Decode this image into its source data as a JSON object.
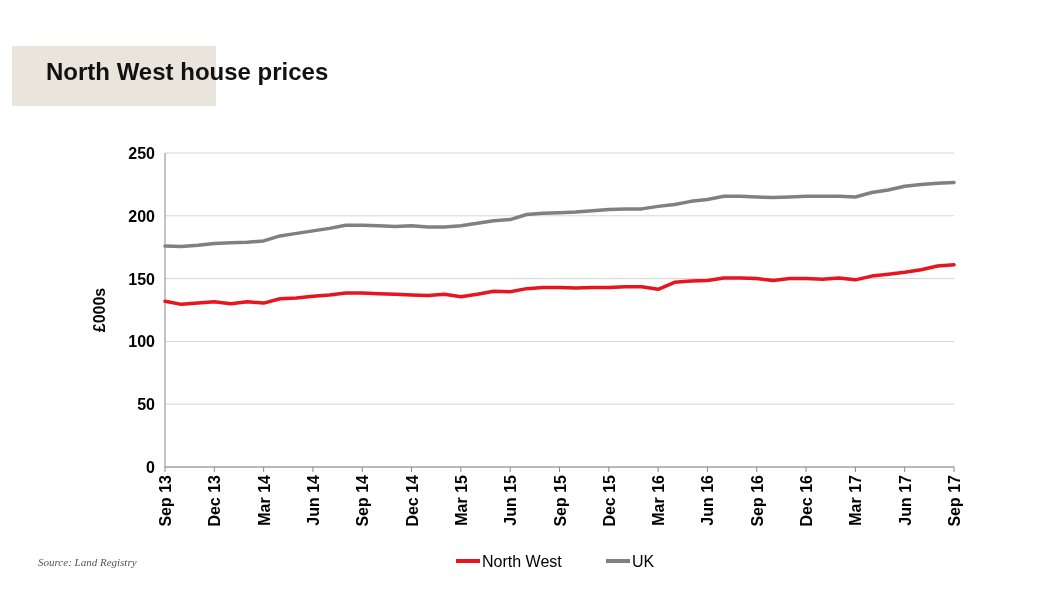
{
  "chart_data": {
    "type": "line",
    "title": "North West house prices",
    "ylabel": "£000s",
    "categories": [
      "Sep 13",
      null,
      null,
      "Dec 13",
      null,
      null,
      "Mar 14",
      null,
      null,
      "Jun 14",
      null,
      null,
      "Sep 14",
      null,
      null,
      "Dec 14",
      null,
      null,
      "Mar 15",
      null,
      null,
      "Jun 15",
      null,
      null,
      "Sep 15",
      null,
      null,
      "Dec 15",
      null,
      null,
      "Mar 16",
      null,
      null,
      "Jun 16",
      null,
      null,
      "Sep 16",
      null,
      null,
      "Dec 16",
      null,
      null,
      "Mar 17",
      null,
      null,
      "Jun 17",
      null,
      null,
      "Sep 17"
    ],
    "series": [
      {
        "name": "North West",
        "color": "#e8141e",
        "values": [
          132,
          129.5,
          130.5,
          131.5,
          130,
          131.5,
          130.5,
          134,
          134.5,
          136,
          137,
          138.5,
          138.5,
          138,
          137.5,
          137,
          136.5,
          137.5,
          135.5,
          137.5,
          140,
          139.5,
          142,
          143,
          143,
          142.5,
          143,
          143,
          143.5,
          143.5,
          141.5,
          147,
          148,
          148.5,
          150.5,
          150.5,
          150,
          148.5,
          150,
          150,
          149.5,
          150.5,
          149,
          152,
          153.5,
          155,
          157,
          160,
          161
        ]
      },
      {
        "name": "UK",
        "color": "#808080",
        "values": [
          176,
          175.5,
          176.5,
          178,
          178.5,
          179,
          180,
          184,
          186,
          188,
          190,
          192.5,
          192.5,
          192,
          191.5,
          192,
          191,
          191,
          192,
          194,
          196,
          197,
          201,
          202,
          202.5,
          203,
          204,
          205,
          205.5,
          205.5,
          207.5,
          209,
          211.5,
          213,
          215.5,
          215.5,
          215,
          214.5,
          215,
          215.5,
          215.5,
          215.5,
          215,
          218.5,
          220.5,
          223.5,
          225,
          226,
          226.5
        ]
      }
    ],
    "ylim": [
      0,
      250
    ],
    "yticks": [
      0,
      50,
      100,
      150,
      200,
      250
    ],
    "grid": "y",
    "legend": "bottom",
    "line_style": "solid",
    "marker": "none",
    "annotations": [
      "Source: Land Registry"
    ]
  }
}
